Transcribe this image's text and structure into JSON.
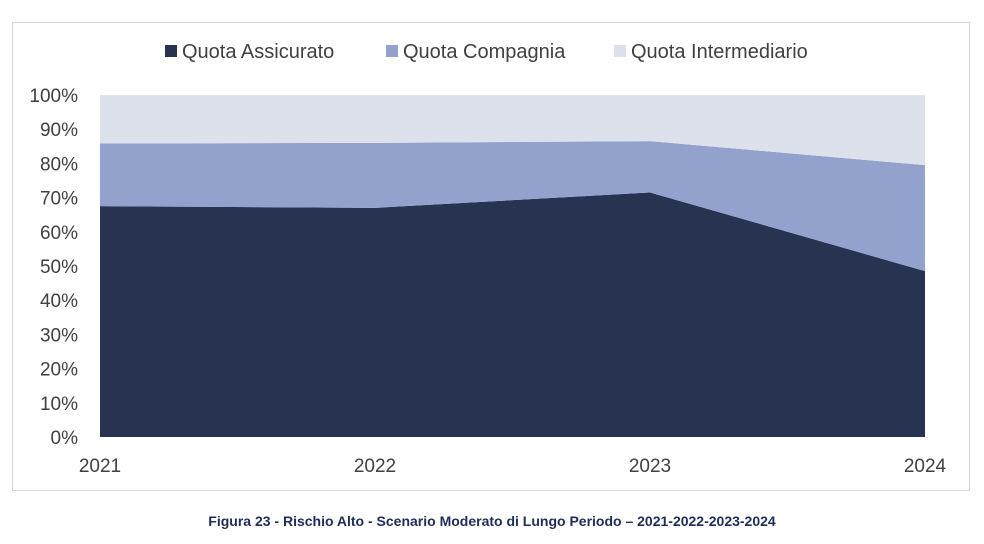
{
  "chart_data": {
    "type": "area",
    "stacked": "percent",
    "categories": [
      "2021",
      "2022",
      "2023",
      "2024"
    ],
    "series": [
      {
        "name": "Quota Assicurato",
        "values": [
          67.5,
          67,
          71.5,
          48.5
        ],
        "color": "#283352"
      },
      {
        "name": "Quota Compagnia",
        "values": [
          18.3,
          19,
          15,
          31
        ],
        "color": "#93a2cc"
      },
      {
        "name": "Quota Intermediario",
        "values": [
          14.2,
          14,
          13.5,
          20.5
        ],
        "color": "#dce1ec"
      }
    ],
    "ylim": [
      0,
      100
    ],
    "y_ticks": [
      "0%",
      "10%",
      "20%",
      "30%",
      "40%",
      "50%",
      "60%",
      "70%",
      "80%",
      "90%",
      "100%"
    ],
    "legend_position": "top",
    "grid": false
  },
  "caption": "Figura 23 - Rischio Alto - Scenario Moderato di Lungo Periodo – 2021-2022-2023-2024"
}
